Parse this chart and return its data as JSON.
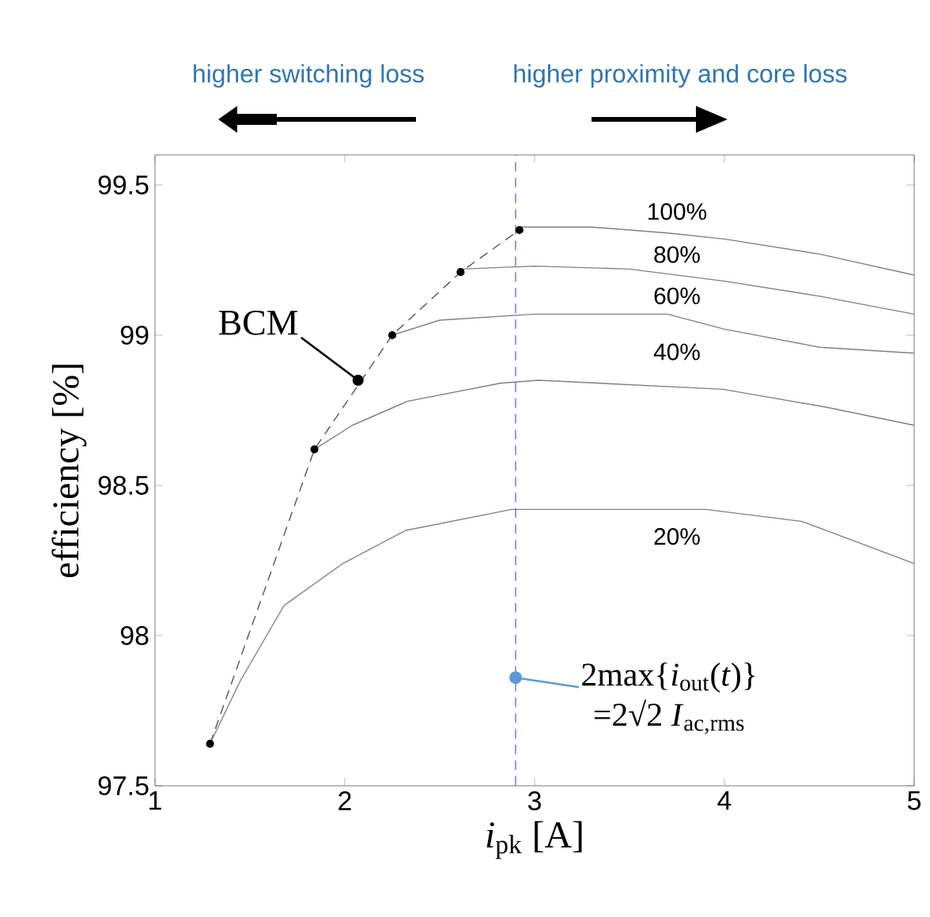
{
  "chart_data": {
    "type": "line",
    "xlabel": "*i*$_{pk}$ [A]",
    "ylabel": "efficiency [%]",
    "xlim": [
      1,
      5
    ],
    "ylim": [
      97.5,
      99.6
    ],
    "xticks": [
      1,
      2,
      3,
      4,
      5
    ],
    "yticks": [
      97.5,
      98,
      98.5,
      99,
      99.5
    ],
    "grid": false,
    "legend": false,
    "series": [
      {
        "color": "#555555",
        "line_style": "dashed",
        "marker": "circle",
        "x": [
          1.29,
          1.84,
          2.25,
          2.61,
          2.92
        ],
        "values": [
          97.64,
          98.62,
          99.0,
          99.21,
          99.35
        ]
      },
      {
        "name": "100%",
        "color": "#808080",
        "line_style": "solid",
        "marker": "none",
        "x": [
          2.92,
          3.3,
          3.7,
          4.0,
          4.5,
          5.0
        ],
        "values": [
          99.36,
          99.36,
          99.34,
          99.32,
          99.27,
          99.2
        ]
      },
      {
        "name": "80%",
        "color": "#808080",
        "line_style": "solid",
        "marker": "none",
        "x": [
          2.61,
          3.0,
          3.5,
          4.0,
          4.5,
          5.0
        ],
        "values": [
          99.22,
          99.23,
          99.22,
          99.18,
          99.13,
          99.07
        ]
      },
      {
        "name": "60%",
        "color": "#808080",
        "line_style": "solid",
        "marker": "none",
        "x": [
          2.25,
          2.5,
          3.0,
          3.7,
          4.0,
          4.5,
          5.0
        ],
        "values": [
          99.0,
          99.05,
          99.07,
          99.07,
          99.02,
          98.96,
          98.94
        ]
      },
      {
        "name": "40%",
        "color": "#808080",
        "line_style": "solid",
        "marker": "none",
        "x": [
          1.84,
          2.04,
          2.33,
          2.82,
          3.02,
          3.99,
          4.54,
          5.0
        ],
        "values": [
          98.62,
          98.7,
          98.78,
          98.84,
          98.85,
          98.82,
          98.76,
          98.7
        ]
      },
      {
        "name": "20%",
        "color": "#808080",
        "line_style": "solid",
        "marker": "none",
        "x": [
          1.29,
          1.45,
          1.68,
          1.99,
          2.32,
          2.88,
          3.9,
          4.41,
          5.0
        ],
        "values": [
          97.64,
          97.85,
          98.1,
          98.24,
          98.35,
          98.42,
          98.42,
          98.38,
          98.24
        ]
      }
    ],
    "ref_lines": [
      {
        "axis": "x",
        "value": 2.9,
        "color": "#3333cc",
        "line_style": "dashed"
      }
    ],
    "annotations": [
      {
        "text": "BCM",
        "x": 2.07,
        "y": 98.85
      },
      {
        "text": "2max{*i*$_{out}$(*t*)}",
        "x": 2.9,
        "y": 97.86
      },
      "=2√2 *I*$_{ac,rms}$",
      "higher switching loss",
      "higher proximity and core loss"
    ]
  }
}
